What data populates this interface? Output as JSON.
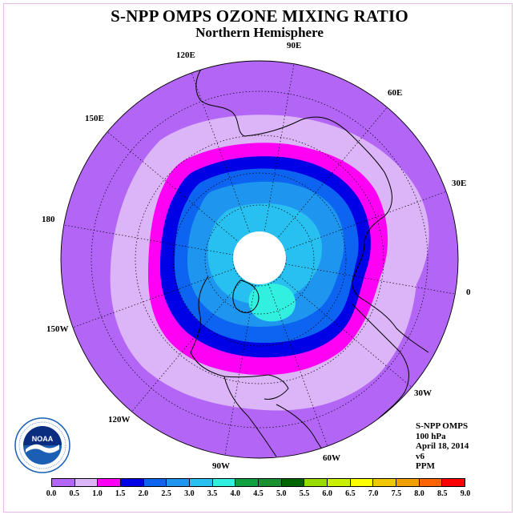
{
  "header": {
    "title": "S-NPP OMPS OZONE MIXING RATIO",
    "subtitle": "Northern Hemisphere"
  },
  "map": {
    "projection": "north polar stereographic",
    "hemisphere": "Northern",
    "longitude_labels": [
      "90E",
      "60E",
      "30E",
      "0",
      "30W",
      "60W",
      "90W",
      "120W",
      "150W",
      "180",
      "150E",
      "120E"
    ],
    "colors": {
      "outer_band": "#b366f5",
      "lavender_band": "#dcb4f8",
      "magenta_band": "#ff00f5",
      "navy_band": "#0000e6",
      "blue_band": "#0c64f0",
      "azure_band": "#1e96f0",
      "light_blue_band": "#28c0f0",
      "cyan_band": "#32f0e0",
      "polar_mask": "#ffffff",
      "coastline": "#000000",
      "graticule": "#000000"
    }
  },
  "info": {
    "instrument": "S-NPP OMPS",
    "level": "100 hPa",
    "date": "April 18, 2014",
    "version": "v6",
    "units": "PPM"
  },
  "logo": {
    "text": "NOAA",
    "ring_text": "NATIONAL OCEANIC AND ATMOSPHERIC ADMINISTRATION · U.S. DEPARTMENT OF COMMERCE",
    "colors": {
      "ring": "#ffffff",
      "inner": "#1a5fb4",
      "bird": "#ffffff",
      "sky": "#0a2d80"
    }
  },
  "colorbar": {
    "labels": [
      "0.0",
      "0.5",
      "1.0",
      "1.5",
      "2.0",
      "2.5",
      "3.0",
      "3.5",
      "4.0",
      "4.5",
      "5.0",
      "5.5",
      "6.0",
      "6.5",
      "7.0",
      "7.5",
      "8.0",
      "8.5",
      "9.0"
    ],
    "colors": [
      "#b366f5",
      "#dcb4f8",
      "#ff00f5",
      "#0000e6",
      "#0c64f0",
      "#1e96f0",
      "#28c0f0",
      "#32f0e0",
      "#10a040",
      "#1a9030",
      "#006400",
      "#9adc00",
      "#c8f000",
      "#ffff00",
      "#f0c800",
      "#f0a000",
      "#ff6400",
      "#ff0000",
      "#8b5a2b"
    ]
  }
}
